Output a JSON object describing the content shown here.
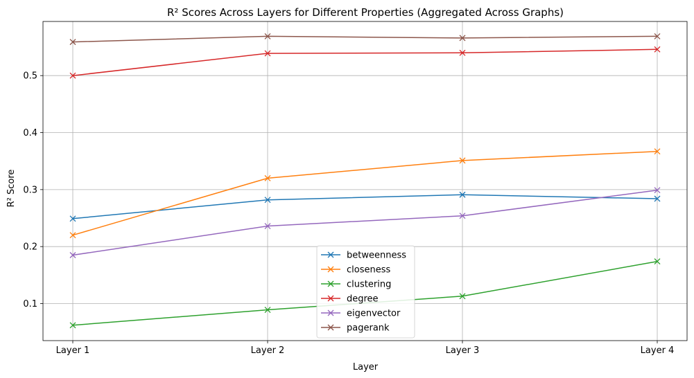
{
  "chart_data": {
    "type": "line",
    "title": "R² Scores Across Layers for Different Properties (Aggregated Across Graphs)",
    "xlabel": "Layer",
    "ylabel": "R² Score",
    "categories": [
      "Layer 1",
      "Layer 2",
      "Layer 3",
      "Layer 4"
    ],
    "ylim": [
      0.035,
      0.595
    ],
    "yticks": [
      0.1,
      0.2,
      0.3,
      0.4,
      0.5
    ],
    "ytick_labels": [
      "0.1",
      "0.2",
      "0.3",
      "0.4",
      "0.5"
    ],
    "grid": true,
    "legend_position": "lower center",
    "marker": "x",
    "series": [
      {
        "name": "betweenness",
        "color": "#1f77b4",
        "values": [
          0.249,
          0.282,
          0.291,
          0.284
        ]
      },
      {
        "name": "closeness",
        "color": "#ff7f0e",
        "values": [
          0.22,
          0.32,
          0.351,
          0.367
        ]
      },
      {
        "name": "clustering",
        "color": "#2ca02c",
        "values": [
          0.062,
          0.089,
          0.113,
          0.174
        ]
      },
      {
        "name": "degree",
        "color": "#d62728",
        "values": [
          0.5,
          0.539,
          0.54,
          0.546
        ]
      },
      {
        "name": "eigenvector",
        "color": "#9467bd",
        "values": [
          0.185,
          0.236,
          0.254,
          0.299
        ]
      },
      {
        "name": "pagerank",
        "color": "#8c564b",
        "values": [
          0.559,
          0.569,
          0.566,
          0.569
        ]
      }
    ]
  }
}
